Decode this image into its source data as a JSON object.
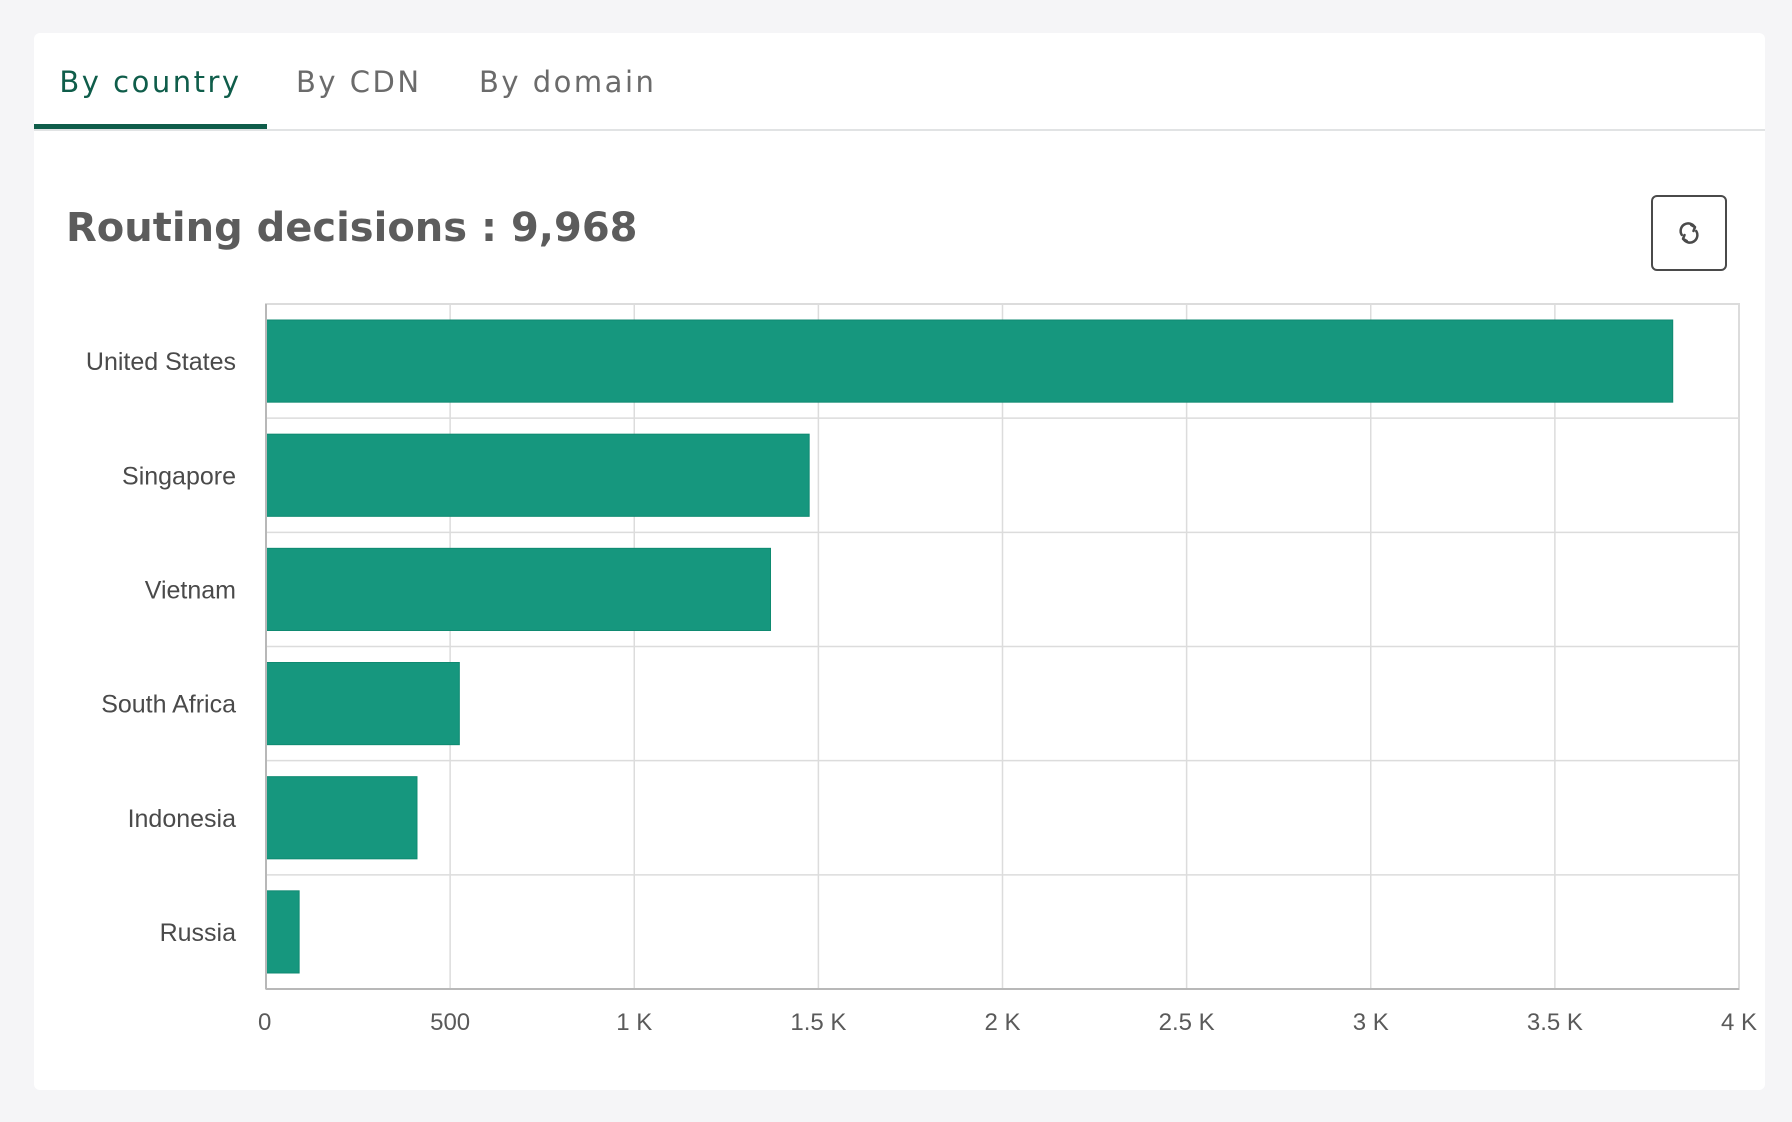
{
  "tabs": [
    {
      "label": "By country",
      "active": true
    },
    {
      "label": "By CDN",
      "active": false
    },
    {
      "label": "By domain",
      "active": false
    }
  ],
  "summary": {
    "label": "Routing decisions",
    "separator": " : ",
    "total": "9,968"
  },
  "refresh": {
    "icon": "refresh-icon"
  },
  "colors": {
    "bar": "#16977e",
    "bar_stroke": "#0f8a71",
    "grid": "#dcdcdc",
    "accent": "#0f5d4a"
  },
  "chart_data": {
    "type": "bar",
    "orientation": "horizontal",
    "categories": [
      "United States",
      "Singapore",
      "Vietnam",
      "South Africa",
      "Indonesia",
      "Russia"
    ],
    "values": [
      3820,
      1475,
      1370,
      525,
      410,
      90
    ],
    "xlim": [
      0,
      4000
    ],
    "x_ticks": [
      0,
      500,
      1000,
      1500,
      2000,
      2500,
      3000,
      3500,
      4000
    ],
    "x_tick_labels": [
      "0",
      "500",
      "1 K",
      "1.5 K",
      "2 K",
      "2.5 K",
      "3 K",
      "3.5 K",
      "4 K"
    ],
    "grid": true,
    "title": "",
    "xlabel": "",
    "ylabel": ""
  }
}
